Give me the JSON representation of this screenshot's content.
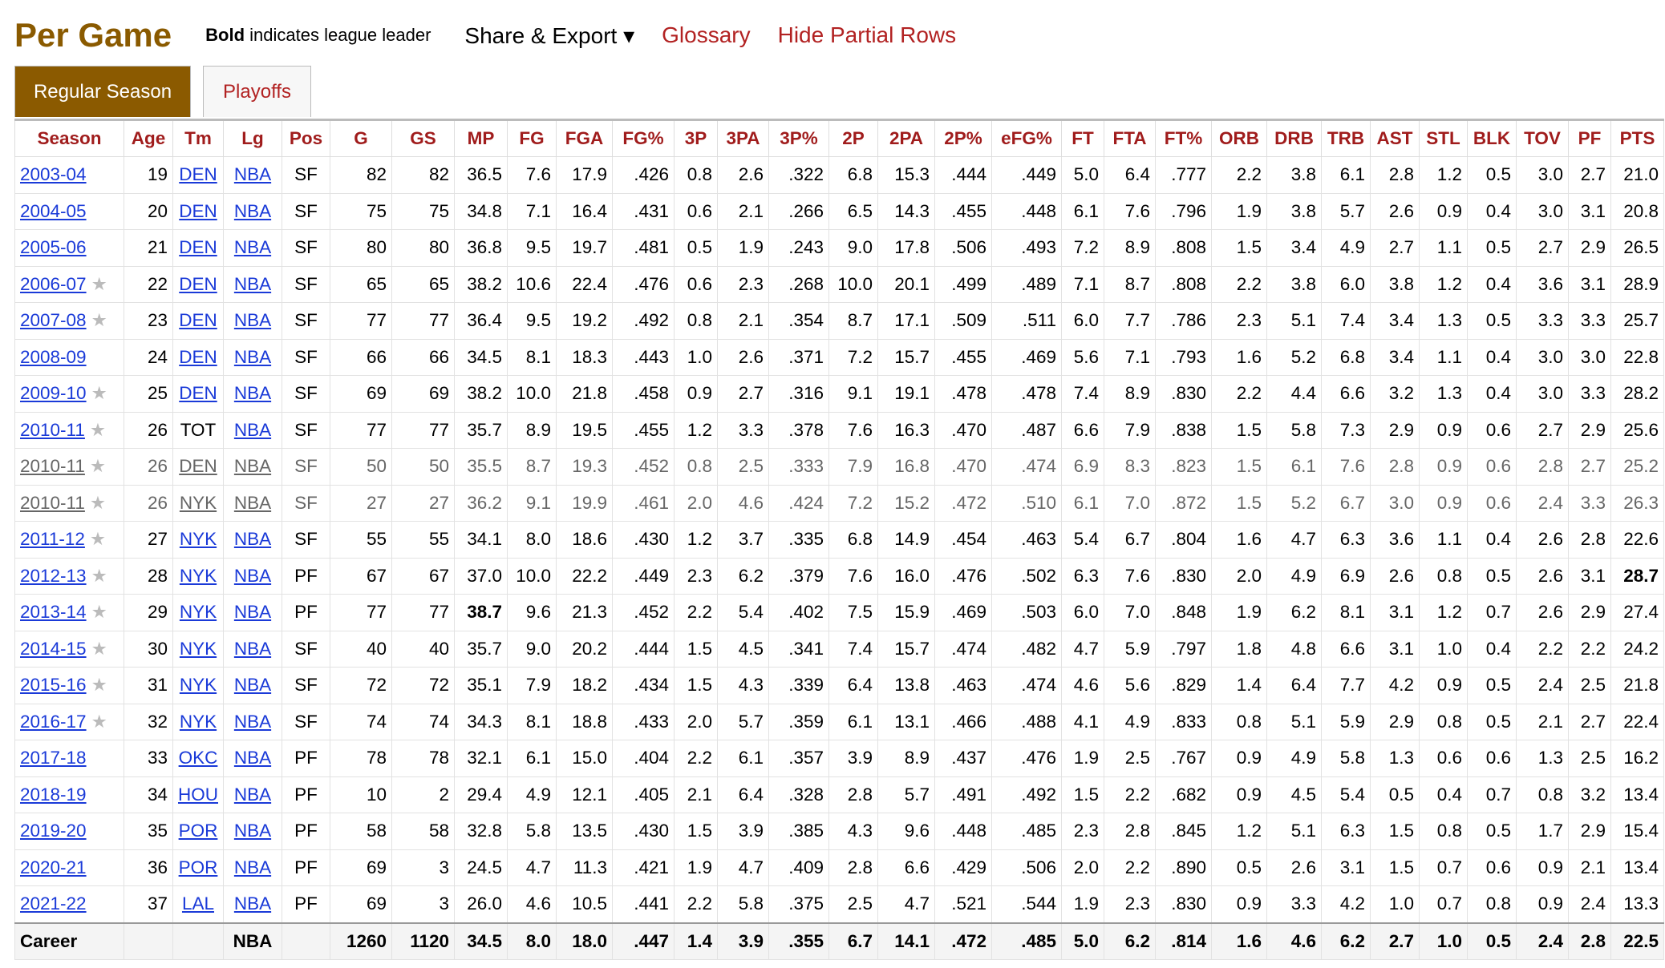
{
  "header": {
    "title": "Per Game",
    "note_bold": "Bold",
    "note_text": "indicates league leader",
    "share": "Share & Export ▾",
    "glossary": "Glossary",
    "hide_partial": "Hide Partial Rows"
  },
  "tabs": [
    "Regular Season",
    "Playoffs"
  ],
  "table": {
    "columns": [
      "Season",
      "Age",
      "Tm",
      "Lg",
      "Pos",
      "G",
      "GS",
      "MP",
      "FG",
      "FGA",
      "FG%",
      "3P",
      "3PA",
      "3P%",
      "2P",
      "2PA",
      "2P%",
      "eFG%",
      "FT",
      "FTA",
      "FT%",
      "ORB",
      "DRB",
      "TRB",
      "AST",
      "STL",
      "BLK",
      "TOV",
      "PF",
      "PTS"
    ],
    "rows": [
      {
        "cells": [
          "2003-04",
          "19",
          "DEN",
          "NBA",
          "SF",
          "82",
          "82",
          "36.5",
          "7.6",
          "17.9",
          ".426",
          "0.8",
          "2.6",
          ".322",
          "6.8",
          "15.3",
          ".444",
          ".449",
          "5.0",
          "6.4",
          ".777",
          "2.2",
          "3.8",
          "6.1",
          "2.8",
          "1.2",
          "0.5",
          "3.0",
          "2.7",
          "21.0"
        ]
      },
      {
        "cells": [
          "2004-05",
          "20",
          "DEN",
          "NBA",
          "SF",
          "75",
          "75",
          "34.8",
          "7.1",
          "16.4",
          ".431",
          "0.6",
          "2.1",
          ".266",
          "6.5",
          "14.3",
          ".455",
          ".448",
          "6.1",
          "7.6",
          ".796",
          "1.9",
          "3.8",
          "5.7",
          "2.6",
          "0.9",
          "0.4",
          "3.0",
          "3.1",
          "20.8"
        ]
      },
      {
        "cells": [
          "2005-06",
          "21",
          "DEN",
          "NBA",
          "SF",
          "80",
          "80",
          "36.8",
          "9.5",
          "19.7",
          ".481",
          "0.5",
          "1.9",
          ".243",
          "9.0",
          "17.8",
          ".506",
          ".493",
          "7.2",
          "8.9",
          ".808",
          "1.5",
          "3.4",
          "4.9",
          "2.7",
          "1.1",
          "0.5",
          "2.7",
          "2.9",
          "26.5"
        ]
      },
      {
        "star": true,
        "cells": [
          "2006-07",
          "22",
          "DEN",
          "NBA",
          "SF",
          "65",
          "65",
          "38.2",
          "10.6",
          "22.4",
          ".476",
          "0.6",
          "2.3",
          ".268",
          "10.0",
          "20.1",
          ".499",
          ".489",
          "7.1",
          "8.7",
          ".808",
          "2.2",
          "3.8",
          "6.0",
          "3.8",
          "1.2",
          "0.4",
          "3.6",
          "3.1",
          "28.9"
        ]
      },
      {
        "star": true,
        "cells": [
          "2007-08",
          "23",
          "DEN",
          "NBA",
          "SF",
          "77",
          "77",
          "36.4",
          "9.5",
          "19.2",
          ".492",
          "0.8",
          "2.1",
          ".354",
          "8.7",
          "17.1",
          ".509",
          ".511",
          "6.0",
          "7.7",
          ".786",
          "2.3",
          "5.1",
          "7.4",
          "3.4",
          "1.3",
          "0.5",
          "3.3",
          "3.3",
          "25.7"
        ]
      },
      {
        "cells": [
          "2008-09",
          "24",
          "DEN",
          "NBA",
          "SF",
          "66",
          "66",
          "34.5",
          "8.1",
          "18.3",
          ".443",
          "1.0",
          "2.6",
          ".371",
          "7.2",
          "15.7",
          ".455",
          ".469",
          "5.6",
          "7.1",
          ".793",
          "1.6",
          "5.2",
          "6.8",
          "3.4",
          "1.1",
          "0.4",
          "3.0",
          "3.0",
          "22.8"
        ]
      },
      {
        "star": true,
        "cells": [
          "2009-10",
          "25",
          "DEN",
          "NBA",
          "SF",
          "69",
          "69",
          "38.2",
          "10.0",
          "21.8",
          ".458",
          "0.9",
          "2.7",
          ".316",
          "9.1",
          "19.1",
          ".478",
          ".478",
          "7.4",
          "8.9",
          ".830",
          "2.2",
          "4.4",
          "6.6",
          "3.2",
          "1.3",
          "0.4",
          "3.0",
          "3.3",
          "28.2"
        ]
      },
      {
        "star": true,
        "nolink": [
          2
        ],
        "cells": [
          "2010-11",
          "26",
          "TOT",
          "NBA",
          "SF",
          "77",
          "77",
          "35.7",
          "8.9",
          "19.5",
          ".455",
          "1.2",
          "3.3",
          ".378",
          "7.6",
          "16.3",
          ".470",
          ".487",
          "6.6",
          "7.9",
          ".838",
          "1.5",
          "5.8",
          "7.3",
          "2.9",
          "0.9",
          "0.6",
          "2.7",
          "2.9",
          "25.6"
        ]
      },
      {
        "star": true,
        "partial": true,
        "cells": [
          "2010-11",
          "26",
          "DEN",
          "NBA",
          "SF",
          "50",
          "50",
          "35.5",
          "8.7",
          "19.3",
          ".452",
          "0.8",
          "2.5",
          ".333",
          "7.9",
          "16.8",
          ".470",
          ".474",
          "6.9",
          "8.3",
          ".823",
          "1.5",
          "6.1",
          "7.6",
          "2.8",
          "0.9",
          "0.6",
          "2.8",
          "2.7",
          "25.2"
        ]
      },
      {
        "star": true,
        "partial": true,
        "cells": [
          "2010-11",
          "26",
          "NYK",
          "NBA",
          "SF",
          "27",
          "27",
          "36.2",
          "9.1",
          "19.9",
          ".461",
          "2.0",
          "4.6",
          ".424",
          "7.2",
          "15.2",
          ".472",
          ".510",
          "6.1",
          "7.0",
          ".872",
          "1.5",
          "5.2",
          "6.7",
          "3.0",
          "0.9",
          "0.6",
          "2.4",
          "3.3",
          "26.3"
        ]
      },
      {
        "star": true,
        "cells": [
          "2011-12",
          "27",
          "NYK",
          "NBA",
          "SF",
          "55",
          "55",
          "34.1",
          "8.0",
          "18.6",
          ".430",
          "1.2",
          "3.7",
          ".335",
          "6.8",
          "14.9",
          ".454",
          ".463",
          "5.4",
          "6.7",
          ".804",
          "1.6",
          "4.7",
          "6.3",
          "3.6",
          "1.1",
          "0.4",
          "2.6",
          "2.8",
          "22.6"
        ]
      },
      {
        "star": true,
        "bold": [
          29
        ],
        "cells": [
          "2012-13",
          "28",
          "NYK",
          "NBA",
          "PF",
          "67",
          "67",
          "37.0",
          "10.0",
          "22.2",
          ".449",
          "2.3",
          "6.2",
          ".379",
          "7.6",
          "16.0",
          ".476",
          ".502",
          "6.3",
          "7.6",
          ".830",
          "2.0",
          "4.9",
          "6.9",
          "2.6",
          "0.8",
          "0.5",
          "2.6",
          "3.1",
          "28.7"
        ]
      },
      {
        "star": true,
        "bold": [
          7
        ],
        "cells": [
          "2013-14",
          "29",
          "NYK",
          "NBA",
          "PF",
          "77",
          "77",
          "38.7",
          "9.6",
          "21.3",
          ".452",
          "2.2",
          "5.4",
          ".402",
          "7.5",
          "15.9",
          ".469",
          ".503",
          "6.0",
          "7.0",
          ".848",
          "1.9",
          "6.2",
          "8.1",
          "3.1",
          "1.2",
          "0.7",
          "2.6",
          "2.9",
          "27.4"
        ]
      },
      {
        "star": true,
        "cells": [
          "2014-15",
          "30",
          "NYK",
          "NBA",
          "SF",
          "40",
          "40",
          "35.7",
          "9.0",
          "20.2",
          ".444",
          "1.5",
          "4.5",
          ".341",
          "7.4",
          "15.7",
          ".474",
          ".482",
          "4.7",
          "5.9",
          ".797",
          "1.8",
          "4.8",
          "6.6",
          "3.1",
          "1.0",
          "0.4",
          "2.2",
          "2.2",
          "24.2"
        ]
      },
      {
        "star": true,
        "cells": [
          "2015-16",
          "31",
          "NYK",
          "NBA",
          "SF",
          "72",
          "72",
          "35.1",
          "7.9",
          "18.2",
          ".434",
          "1.5",
          "4.3",
          ".339",
          "6.4",
          "13.8",
          ".463",
          ".474",
          "4.6",
          "5.6",
          ".829",
          "1.4",
          "6.4",
          "7.7",
          "4.2",
          "0.9",
          "0.5",
          "2.4",
          "2.5",
          "21.8"
        ]
      },
      {
        "star": true,
        "cells": [
          "2016-17",
          "32",
          "NYK",
          "NBA",
          "SF",
          "74",
          "74",
          "34.3",
          "8.1",
          "18.8",
          ".433",
          "2.0",
          "5.7",
          ".359",
          "6.1",
          "13.1",
          ".466",
          ".488",
          "4.1",
          "4.9",
          ".833",
          "0.8",
          "5.1",
          "5.9",
          "2.9",
          "0.8",
          "0.5",
          "2.1",
          "2.7",
          "22.4"
        ]
      },
      {
        "cells": [
          "2017-18",
          "33",
          "OKC",
          "NBA",
          "PF",
          "78",
          "78",
          "32.1",
          "6.1",
          "15.0",
          ".404",
          "2.2",
          "6.1",
          ".357",
          "3.9",
          "8.9",
          ".437",
          ".476",
          "1.9",
          "2.5",
          ".767",
          "0.9",
          "4.9",
          "5.8",
          "1.3",
          "0.6",
          "0.6",
          "1.3",
          "2.5",
          "16.2"
        ]
      },
      {
        "cells": [
          "2018-19",
          "34",
          "HOU",
          "NBA",
          "PF",
          "10",
          "2",
          "29.4",
          "4.9",
          "12.1",
          ".405",
          "2.1",
          "6.4",
          ".328",
          "2.8",
          "5.7",
          ".491",
          ".492",
          "1.5",
          "2.2",
          ".682",
          "0.9",
          "4.5",
          "5.4",
          "0.5",
          "0.4",
          "0.7",
          "0.8",
          "3.2",
          "13.4"
        ]
      },
      {
        "cells": [
          "2019-20",
          "35",
          "POR",
          "NBA",
          "PF",
          "58",
          "58",
          "32.8",
          "5.8",
          "13.5",
          ".430",
          "1.5",
          "3.9",
          ".385",
          "4.3",
          "9.6",
          ".448",
          ".485",
          "2.3",
          "2.8",
          ".845",
          "1.2",
          "5.1",
          "6.3",
          "1.5",
          "0.8",
          "0.5",
          "1.7",
          "2.9",
          "15.4"
        ]
      },
      {
        "cells": [
          "2020-21",
          "36",
          "POR",
          "NBA",
          "PF",
          "69",
          "3",
          "24.5",
          "4.7",
          "11.3",
          ".421",
          "1.9",
          "4.7",
          ".409",
          "2.8",
          "6.6",
          ".429",
          ".506",
          "2.0",
          "2.2",
          ".890",
          "0.5",
          "2.6",
          "3.1",
          "1.5",
          "0.7",
          "0.6",
          "0.9",
          "2.1",
          "13.4"
        ]
      },
      {
        "cells": [
          "2021-22",
          "37",
          "LAL",
          "NBA",
          "PF",
          "69",
          "3",
          "26.0",
          "4.6",
          "10.5",
          ".441",
          "2.2",
          "5.8",
          ".375",
          "2.5",
          "4.7",
          ".521",
          ".544",
          "1.9",
          "2.3",
          ".830",
          "0.9",
          "3.3",
          "4.2",
          "1.0",
          "0.7",
          "0.8",
          "0.9",
          "2.4",
          "13.3"
        ]
      },
      {
        "total": true,
        "cells": [
          "Career",
          null,
          null,
          "NBA",
          null,
          "1260",
          "1120",
          "34.5",
          "8.0",
          "18.0",
          ".447",
          "1.4",
          "3.9",
          ".355",
          "6.7",
          "14.1",
          ".472",
          ".485",
          "5.0",
          "6.2",
          ".814",
          "1.6",
          "4.6",
          "6.2",
          "2.7",
          "1.0",
          "0.5",
          "2.4",
          "2.8",
          "22.5"
        ]
      }
    ]
  }
}
